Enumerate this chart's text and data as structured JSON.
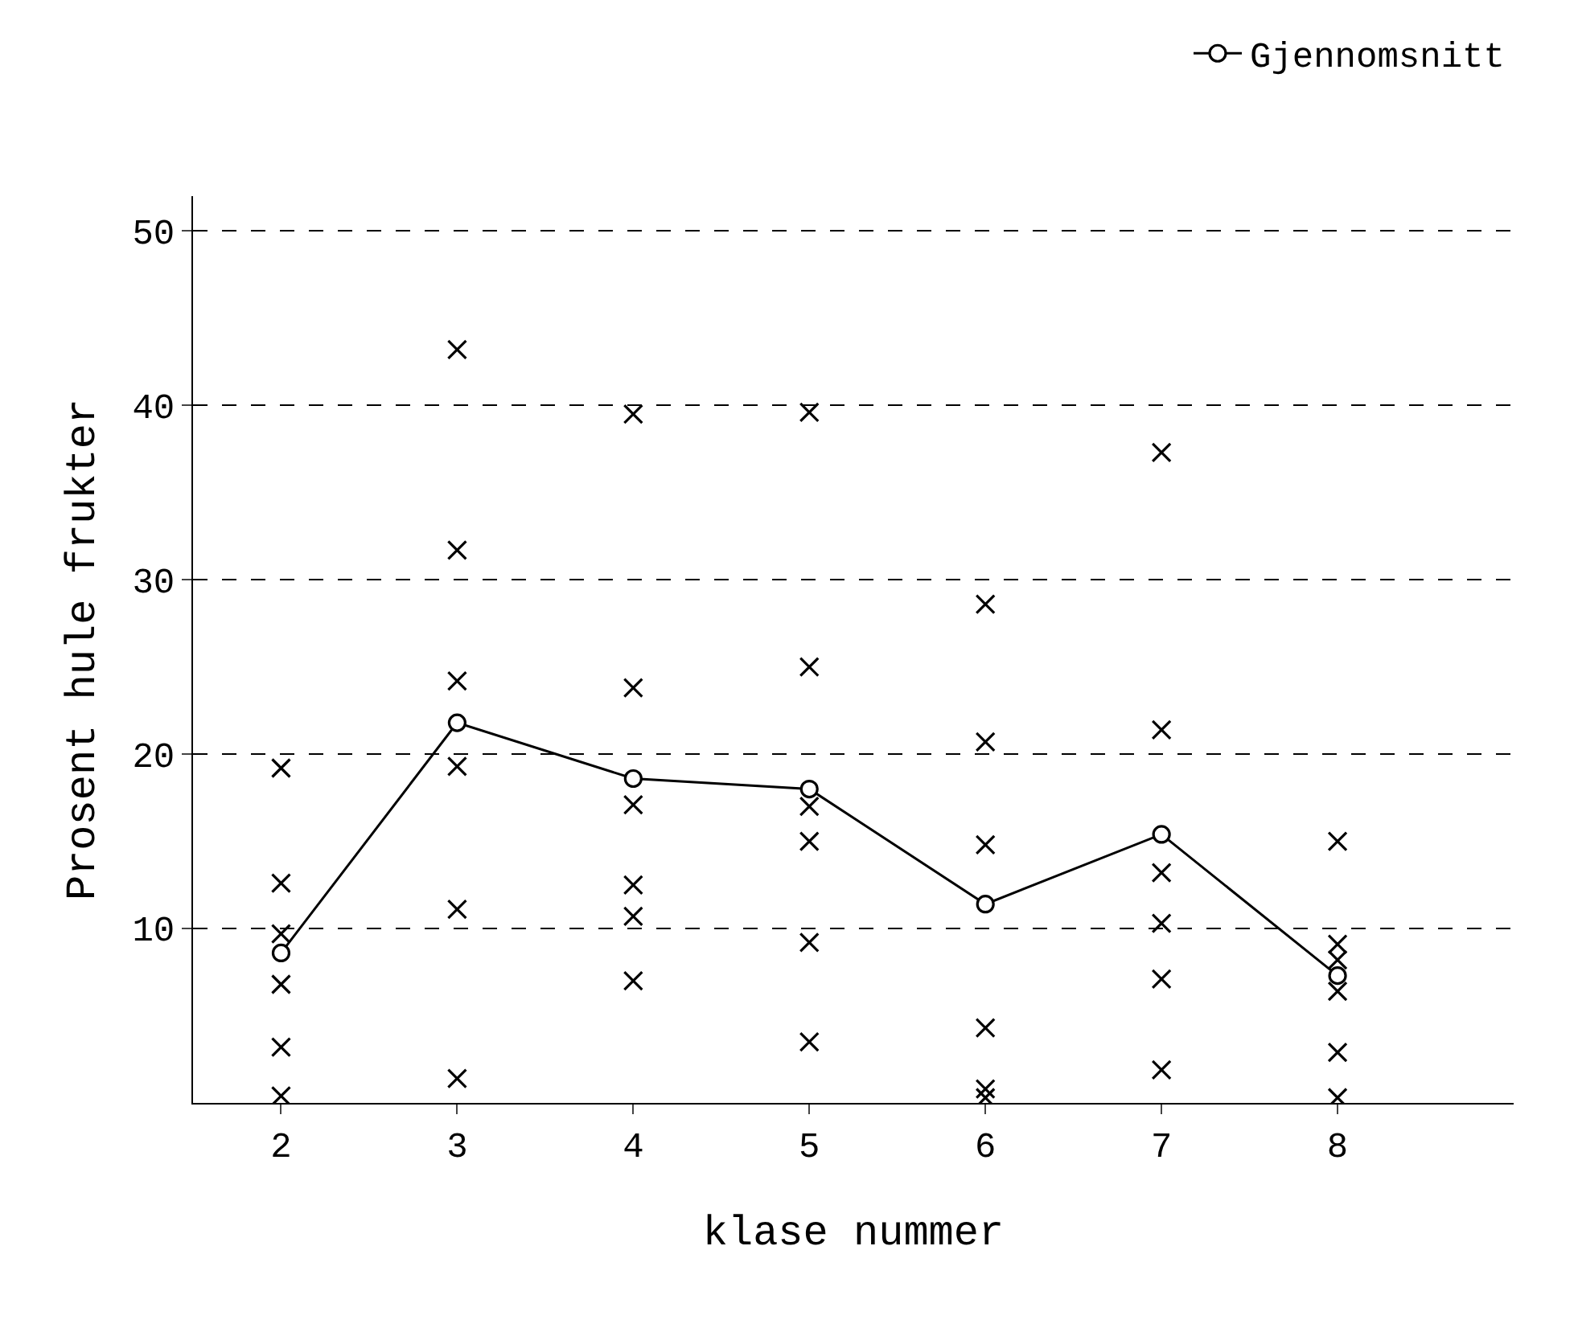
{
  "chart_data": {
    "type": "scatter",
    "xlabel": "klase nummer",
    "ylabel": "Prosent hule frukter",
    "categories": [
      "2",
      "3",
      "4",
      "5",
      "6",
      "7",
      "8"
    ],
    "series": [
      {
        "color": "#000000",
        "marker": "cross",
        "x": [
          "2",
          "2",
          "2",
          "2",
          "2",
          "2",
          "3",
          "3",
          "3",
          "3",
          "3",
          "3",
          "4",
          "4",
          "4",
          "4",
          "4",
          "4",
          "5",
          "5",
          "5",
          "5",
          "5",
          "5",
          "6",
          "6",
          "6",
          "6",
          "6",
          "6",
          "7",
          "7",
          "7",
          "7",
          "7",
          "7",
          "8",
          "8",
          "8",
          "8",
          "8",
          "8"
        ],
        "values": [
          19.2,
          12.6,
          9.7,
          6.8,
          3.2,
          0.4,
          43.2,
          31.7,
          24.2,
          19.3,
          11.1,
          1.4,
          39.5,
          23.8,
          17.1,
          12.5,
          10.7,
          7.0,
          39.6,
          25.0,
          17.0,
          15.0,
          9.2,
          3.5,
          28.6,
          20.7,
          14.8,
          4.3,
          0.8,
          0.3,
          37.3,
          21.4,
          13.2,
          10.3,
          7.1,
          1.9,
          15.0,
          9.1,
          8.2,
          6.4,
          2.9,
          0.3
        ]
      },
      {
        "type": "line",
        "name": "Gjennomsnitt",
        "color": "#000000",
        "marker": "circle",
        "line_style": "solid",
        "values": [
          8.6,
          21.8,
          18.6,
          18.0,
          11.4,
          15.4,
          7.3
        ]
      }
    ],
    "ylim": [
      0,
      52
    ],
    "yticks": [
      10,
      20,
      30,
      40,
      50
    ],
    "grid": "y",
    "legend": "top right"
  }
}
